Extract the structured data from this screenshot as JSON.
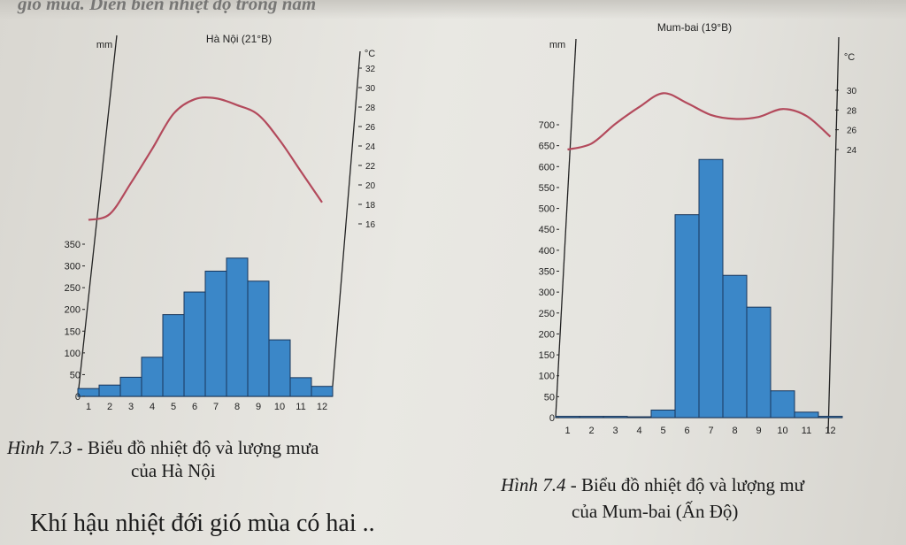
{
  "header": {
    "top_text": "giố mùa. Diễn biến nhiệt độ trong năm"
  },
  "captions": {
    "fig1_label": "Hình 7.3",
    "fig1_text": " - Biểu đồ nhiệt độ và lượng mưa",
    "fig1_line2": "của Hà Nội",
    "fig2_label": "Hình 7.4",
    "fig2_text": " - Biểu đồ nhiệt độ và lượng mư",
    "fig2_line2": "của Mum-bai (Ấn Độ)"
  },
  "body_text": "Khí hậu nhiệt đới gió mùa có hai ..",
  "colors": {
    "bar": "#3b87c8",
    "bar_edge": "#18355a",
    "temp_line": "#b34a5c",
    "axis": "#222222"
  },
  "chart_data": [
    {
      "type": "bar",
      "title": "Hà Nội (21°B)",
      "ylabel": "mm",
      "y2label": "°C",
      "categories": [
        "1",
        "2",
        "3",
        "4",
        "5",
        "6",
        "7",
        "8",
        "9",
        "10",
        "11",
        "12"
      ],
      "ylim": [
        0,
        350
      ],
      "y_ticks": [
        0,
        50,
        100,
        150,
        200,
        250,
        300,
        350
      ],
      "y2lim": [
        16,
        32
      ],
      "y2_ticks": [
        16,
        18,
        20,
        22,
        24,
        26,
        28,
        30,
        32
      ],
      "series": [
        {
          "kind": "bar",
          "values": [
            18,
            26,
            44,
            90,
            188,
            240,
            288,
            318,
            265,
            130,
            43,
            23
          ]
        },
        {
          "kind": "line",
          "values": [
            16.4,
            17.0,
            20.2,
            23.7,
            27.3,
            28.8,
            28.9,
            28.2,
            27.2,
            24.6,
            21.4,
            18.2
          ]
        }
      ]
    },
    {
      "type": "bar",
      "title": "Mum-bai (19°B)",
      "ylabel": "mm",
      "y2label": "°C",
      "categories": [
        "1",
        "2",
        "3",
        "4",
        "5",
        "6",
        "7",
        "8",
        "9",
        "10",
        "11",
        "12"
      ],
      "ylim": [
        0,
        700
      ],
      "y_ticks": [
        0,
        50,
        100,
        150,
        200,
        250,
        300,
        350,
        400,
        450,
        500,
        550,
        600,
        650,
        700
      ],
      "y2lim": [
        24,
        30
      ],
      "y2_ticks": [
        24,
        26,
        28,
        30
      ],
      "series": [
        {
          "kind": "bar",
          "values": [
            3,
            3,
            3,
            2,
            18,
            485,
            617,
            340,
            264,
            64,
            13,
            3
          ]
        },
        {
          "kind": "line",
          "values": [
            24.0,
            24.6,
            26.6,
            28.3,
            29.7,
            28.7,
            27.5,
            27.1,
            27.3,
            28.1,
            27.4,
            25.3
          ]
        }
      ]
    }
  ]
}
